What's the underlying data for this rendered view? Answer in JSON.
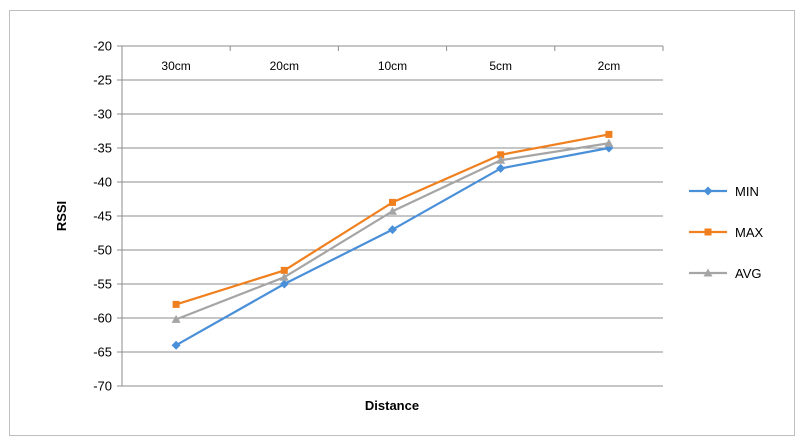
{
  "chart_data": {
    "type": "line",
    "title": "",
    "xlabel": "Distance",
    "ylabel": "RSSI",
    "categories": [
      "30cm",
      "20cm",
      "10cm",
      "5cm",
      "2cm"
    ],
    "ylim": [
      -70,
      -20
    ],
    "ytick_step": 5,
    "x_axis_position": "top",
    "grid": true,
    "legend_position": "right",
    "series": [
      {
        "name": "MIN",
        "color": "#4a90d9",
        "marker": "diamond",
        "values": [
          -64,
          -55,
          -47,
          -38,
          -35
        ]
      },
      {
        "name": "MAX",
        "color": "#f07f1e",
        "marker": "square",
        "values": [
          -58,
          -53,
          -43,
          -36,
          -33
        ]
      },
      {
        "name": "AVG",
        "color": "#a5a5a5",
        "marker": "triangle",
        "values": [
          -60.2,
          -54,
          -44.3,
          -36.8,
          -34.3
        ]
      }
    ]
  }
}
